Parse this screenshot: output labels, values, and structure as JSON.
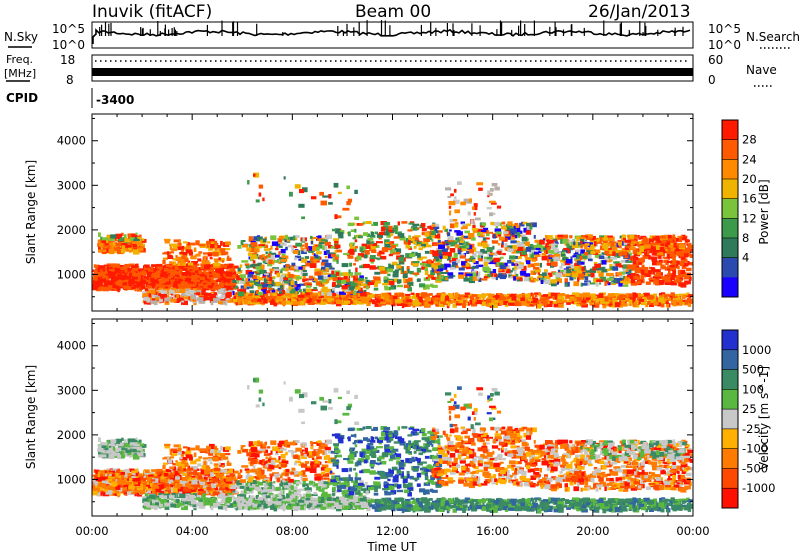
{
  "header": {
    "station": "Inuvik (fitACF)",
    "beam": "Beam 00",
    "date": "26/Jan/2013"
  },
  "summary": {
    "nsky_label": "N.Sky",
    "nsky_top": "10^5",
    "nsky_bottom": "10^0",
    "nsearch_label": "N.Search",
    "nsearch_top": "10^5",
    "nsearch_bottom": "10^0",
    "freq_label": "Freq.",
    "freq_unit": "[MHz]",
    "freq_top": "18",
    "freq_bottom": "8",
    "nave_label": "Nave",
    "nave_top": "60",
    "nave_bottom": "0",
    "cpid_label": "CPID",
    "cpid_value": "-3400"
  },
  "chart_data": [
    {
      "type": "heatmap",
      "title": "",
      "xlabel": "Time UT",
      "ylabel": "Slant Range [km]",
      "xlim": [
        "00:00",
        "24:00"
      ],
      "ylim": [
        180,
        4600
      ],
      "xticks": [
        "00:00",
        "04:00",
        "08:00",
        "12:00",
        "16:00",
        "20:00",
        "00:00"
      ],
      "yticks": [
        1000,
        2000,
        3000,
        4000
      ],
      "colorbar": {
        "label": "Power [dB]",
        "ticks": [
          "4",
          "8",
          "12",
          "16",
          "20",
          "24",
          "28"
        ],
        "colors": [
          "#1a00ff",
          "#2a4ab0",
          "#2f7a5a",
          "#3c9a4a",
          "#7ac43c",
          "#f0b400",
          "#ff8a00",
          "#ff5a00",
          "#ff1a00"
        ]
      },
      "scatter_regions": [
        {
          "t_start": 0.0,
          "t_end": 5.6,
          "r_min": 700,
          "r_max": 1250,
          "value": "28+"
        },
        {
          "t_start": 0.2,
          "t_end": 2.0,
          "r_min": 1550,
          "r_max": 1800,
          "value": "22-28"
        },
        {
          "t_start": 5.6,
          "t_end": 11.0,
          "r_min": 400,
          "r_max": 600,
          "value": "24-28"
        },
        {
          "t_start": 11.0,
          "t_end": 24.0,
          "r_min": 350,
          "r_max": 600,
          "value": "20-28"
        },
        {
          "t_start": 13.0,
          "t_end": 24.0,
          "r_min": 700,
          "r_max": 2100,
          "value": "4-28"
        }
      ]
    },
    {
      "type": "heatmap",
      "title": "",
      "xlabel": "Time UT",
      "ylabel": "Slant Range [km]",
      "xlim": [
        "00:00",
        "24:00"
      ],
      "ylim": [
        180,
        4600
      ],
      "xticks": [
        "00:00",
        "04:00",
        "08:00",
        "12:00",
        "16:00",
        "20:00",
        "00:00"
      ],
      "yticks": [
        1000,
        2000,
        3000,
        4000
      ],
      "colorbar": {
        "label": "Velocity [m s^-1]",
        "ticks": [
          "1000",
          "500",
          "100",
          "25",
          "-25",
          "-100",
          "-500",
          "-1000"
        ],
        "colors": [
          "#2230d0",
          "#3366a0",
          "#3a8a64",
          "#5ab840",
          "#c8c8c8",
          "#ffb000",
          "#ff7a00",
          "#ff4800",
          "#ff1000"
        ]
      },
      "scatter_regions": [
        {
          "t_start": 0.0,
          "t_end": 5.6,
          "r_min": 700,
          "r_max": 1250,
          "value": "-100 to -500"
        },
        {
          "t_start": 5.6,
          "t_end": 11.0,
          "r_min": 300,
          "r_max": 700,
          "value": "-25 to 25"
        },
        {
          "t_start": 10.0,
          "t_end": 14.0,
          "r_min": 1000,
          "r_max": 2000,
          "value": "100 to 1000"
        },
        {
          "t_start": 14.0,
          "t_end": 24.0,
          "r_min": 700,
          "r_max": 2000,
          "value": "-100 to -1000"
        }
      ]
    }
  ]
}
